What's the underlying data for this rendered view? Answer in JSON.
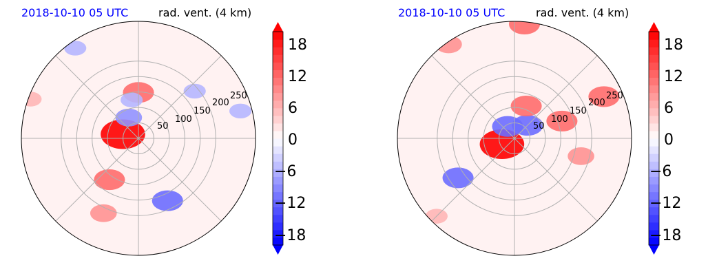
{
  "colors": {
    "positive": "#ff0000",
    "negative": "#0000ff",
    "neutral": "#ffffff",
    "grid": "#b0b0b0",
    "date_title": "#0000ff"
  },
  "panels": [
    {
      "title_left": "2018-10-10 05 UTC",
      "title_right": "rad. vent. (4 km)",
      "radial_labels": [
        "50",
        "100",
        "150",
        "200",
        "250"
      ]
    },
    {
      "title_left": "2018-10-10 05 UTC",
      "title_right": "rad. vent. (4 km)",
      "radial_labels": [
        "50",
        "100",
        "150",
        "200",
        "250"
      ]
    }
  ],
  "colorbar": {
    "ticks": [
      "18",
      "12",
      "6",
      "0",
      "−6",
      "−12",
      "−18"
    ],
    "range": [
      -21,
      21
    ],
    "levels": 28,
    "extend": "both"
  },
  "chart_data": [
    {
      "type": "heatmap",
      "projection": "polar",
      "title": "2018-10-10 05 UTC  rad. vent. (4 km)",
      "r_ticks": [
        50,
        100,
        150,
        200,
        250
      ],
      "theta_grid_deg": [
        0,
        45,
        90,
        135,
        180,
        225,
        270,
        315
      ],
      "colorbar_ticks": [
        -18,
        -12,
        -6,
        0,
        6,
        12,
        18
      ],
      "vmin": -21,
      "vmax": 21,
      "features": [
        {
          "r": 35,
          "theta": 165,
          "value": 21
        },
        {
          "r": 100,
          "theta": 90,
          "value": 12
        },
        {
          "r": 110,
          "theta": 235,
          "value": 12
        },
        {
          "r": 180,
          "theta": 245,
          "value": 9
        },
        {
          "r": 50,
          "theta": 115,
          "value": -9
        },
        {
          "r": 85,
          "theta": 100,
          "value": -6
        },
        {
          "r": 160,
          "theta": 40,
          "value": -6
        },
        {
          "r": 230,
          "theta": 15,
          "value": -6
        },
        {
          "r": 150,
          "theta": 295,
          "value": -12
        },
        {
          "r": 240,
          "theta": 125,
          "value": -6
        },
        {
          "r": 250,
          "theta": 160,
          "value": 6
        }
      ]
    },
    {
      "type": "heatmap",
      "projection": "polar",
      "title": "2018-10-10 05 UTC  rad. vent. (4 km)",
      "r_ticks": [
        50,
        100,
        150,
        200,
        250
      ],
      "theta_grid_deg": [
        0,
        45,
        90,
        135,
        180,
        225,
        270,
        315
      ],
      "colorbar_ticks": [
        -18,
        -12,
        -6,
        0,
        6,
        12,
        18
      ],
      "vmin": -21,
      "vmax": 21,
      "features": [
        {
          "r": 30,
          "theta": 205,
          "value": 21
        },
        {
          "r": 30,
          "theta": 120,
          "value": -12
        },
        {
          "r": 40,
          "theta": 45,
          "value": -12
        },
        {
          "r": 75,
          "theta": 70,
          "value": 12
        },
        {
          "r": 110,
          "theta": 20,
          "value": 12
        },
        {
          "r": 215,
          "theta": 25,
          "value": 12
        },
        {
          "r": 150,
          "theta": 345,
          "value": 9
        },
        {
          "r": 250,
          "theta": 85,
          "value": 12
        },
        {
          "r": 150,
          "theta": 215,
          "value": -12
        },
        {
          "r": 240,
          "theta": 225,
          "value": 6
        },
        {
          "r": 250,
          "theta": 125,
          "value": 9
        }
      ]
    }
  ]
}
